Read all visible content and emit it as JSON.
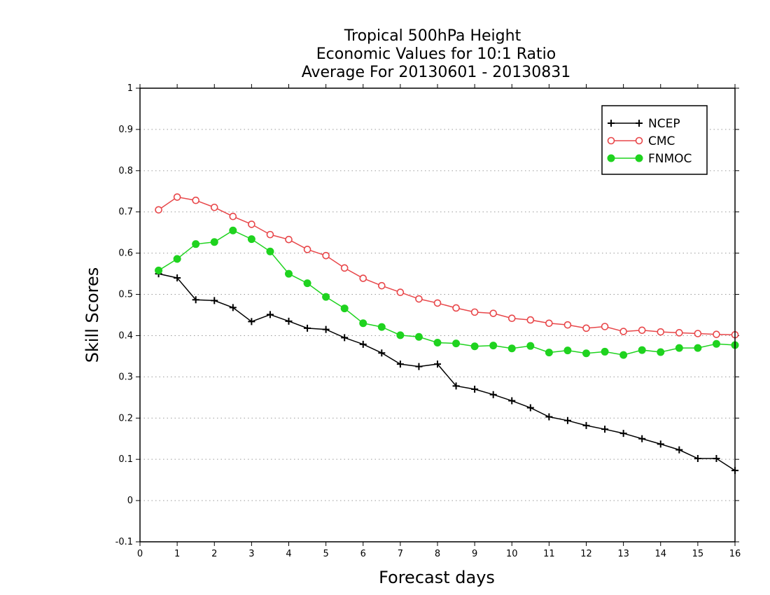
{
  "chart_data": {
    "type": "line",
    "title": [
      "Tropical 500hPa Height",
      "Economic Values for 10:1 Ratio",
      "Average For 20130601 - 20130831"
    ],
    "xlabel": "Forecast days",
    "ylabel": "Skill Scores",
    "xlim": [
      0,
      16
    ],
    "ylim": [
      -0.1,
      1
    ],
    "xticks": [
      0,
      1,
      2,
      3,
      4,
      5,
      6,
      7,
      8,
      9,
      10,
      11,
      12,
      13,
      14,
      15,
      16
    ],
    "yticks": [
      -0.1,
      0,
      0.1,
      0.2,
      0.3,
      0.4,
      0.5,
      0.6,
      0.7,
      0.8,
      0.9,
      1
    ],
    "ytick_labels": [
      "-0.1",
      "0",
      "0.1",
      "0.2",
      "0.3",
      "0.4",
      "0.5",
      "0.6",
      "0.7",
      "0.8",
      "0.9",
      "1"
    ],
    "grid": "horizontal dotted",
    "legend_position": "top-right",
    "x": [
      0.5,
      1,
      1.5,
      2,
      2.5,
      3,
      3.5,
      4,
      4.5,
      5,
      5.5,
      6,
      6.5,
      7,
      7.5,
      8,
      8.5,
      9,
      9.5,
      10,
      10.5,
      11,
      11.5,
      12,
      12.5,
      13,
      13.5,
      14,
      14.5,
      15,
      15.5,
      16
    ],
    "series": [
      {
        "name": "NCEP",
        "color": "#000000",
        "marker": "plus",
        "values": [
          0.55,
          0.54,
          0.487,
          0.485,
          0.468,
          0.434,
          0.451,
          0.435,
          0.418,
          0.415,
          0.395,
          0.379,
          0.358,
          0.331,
          0.325,
          0.331,
          0.278,
          0.27,
          0.257,
          0.242,
          0.225,
          0.203,
          0.194,
          0.182,
          0.173,
          0.163,
          0.15,
          0.137,
          0.123,
          0.102,
          0.102,
          0.073
        ]
      },
      {
        "name": "CMC",
        "color": "#e8474a",
        "marker": "open-circle",
        "values": [
          0.705,
          0.736,
          0.728,
          0.711,
          0.689,
          0.67,
          0.645,
          0.633,
          0.609,
          0.594,
          0.564,
          0.539,
          0.521,
          0.505,
          0.489,
          0.479,
          0.467,
          0.457,
          0.454,
          0.442,
          0.438,
          0.43,
          0.426,
          0.418,
          0.422,
          0.41,
          0.413,
          0.409,
          0.407,
          0.405,
          0.403,
          0.402
        ]
      },
      {
        "name": "FNMOC",
        "color": "#1fd31f",
        "marker": "filled-circle",
        "values": [
          0.558,
          0.586,
          0.622,
          0.627,
          0.655,
          0.634,
          0.604,
          0.55,
          0.527,
          0.494,
          0.466,
          0.43,
          0.421,
          0.401,
          0.397,
          0.383,
          0.381,
          0.374,
          0.376,
          0.369,
          0.375,
          0.359,
          0.364,
          0.357,
          0.361,
          0.353,
          0.365,
          0.36,
          0.37,
          0.37,
          0.38,
          0.377
        ]
      }
    ]
  }
}
